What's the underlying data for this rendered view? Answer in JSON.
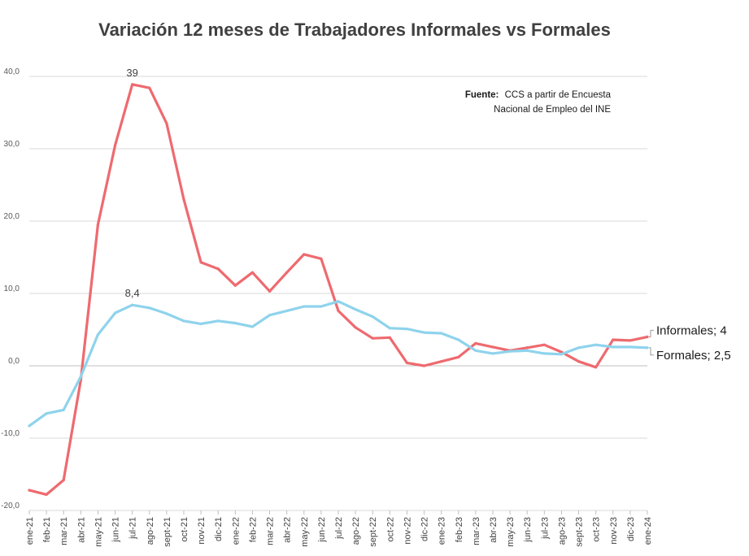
{
  "chart_data": {
    "type": "line",
    "title": "Variación 12 meses de Trabajadores Informales vs Formales",
    "xlabel": "",
    "ylabel": "",
    "ylim": [
      -20,
      40
    ],
    "yticks": [
      40,
      30,
      20,
      10,
      0,
      -10,
      -20
    ],
    "ytick_labels": [
      "40,0",
      "30,0",
      "20,0",
      "10,0",
      "0,0",
      "-10,0",
      "-20,0"
    ],
    "grid": true,
    "categories": [
      "ene-21",
      "feb-21",
      "mar-21",
      "abr-21",
      "may-21",
      "jun-21",
      "jul-21",
      "ago-21",
      "sept-21",
      "oct-21",
      "nov-21",
      "dic-21",
      "ene-22",
      "feb-22",
      "mar-22",
      "abr-22",
      "may-22",
      "jun-22",
      "jul-22",
      "ago-22",
      "sept-22",
      "oct-22",
      "nov-22",
      "dic-22",
      "ene-23",
      "feb-23",
      "mar-23",
      "abr-23",
      "may-23",
      "jun-23",
      "jul-23",
      "ago-23",
      "sept-23",
      "oct-23",
      "nov-23",
      "dic-23",
      "ene-24"
    ],
    "series": [
      {
        "name": "Informales",
        "color": "#ee6a6f",
        "values": [
          -17.2,
          -17.8,
          -15.8,
          -2.0,
          19.5,
          30.5,
          38.9,
          38.4,
          33.5,
          23.0,
          14.3,
          13.4,
          11.1,
          12.9,
          10.3,
          12.9,
          15.4,
          14.8,
          7.6,
          5.3,
          3.8,
          3.9,
          0.4,
          0.0,
          0.6,
          1.2,
          3.1,
          2.6,
          2.1,
          2.5,
          2.9,
          1.9,
          0.6,
          -0.2,
          3.6,
          3.5,
          4.0
        ]
      },
      {
        "name": "Formales",
        "color": "#8fd3ec",
        "values": [
          -8.3,
          -6.6,
          -6.1,
          -1.5,
          4.3,
          7.3,
          8.4,
          8.0,
          7.2,
          6.2,
          5.8,
          6.2,
          5.9,
          5.4,
          7.0,
          7.6,
          8.2,
          8.2,
          8.9,
          7.8,
          6.8,
          5.2,
          5.1,
          4.6,
          4.5,
          3.6,
          2.1,
          1.7,
          2.0,
          2.1,
          1.7,
          1.6,
          2.5,
          2.9,
          2.6,
          2.6,
          2.5
        ]
      }
    ],
    "annotations": [
      {
        "text": "39",
        "series": "Informales",
        "category": "jul-21"
      },
      {
        "text": "8,4",
        "series": "Formales",
        "category": "jul-21"
      }
    ],
    "end_labels": [
      {
        "series": "Informales",
        "text": "Informales; 4"
      },
      {
        "series": "Formales",
        "text": "Formales; 2,5"
      }
    ],
    "source": {
      "label": "Fuente:",
      "line1": "CCS a partir de Encuesta",
      "line2": "Nacional de Empleo del INE"
    }
  }
}
